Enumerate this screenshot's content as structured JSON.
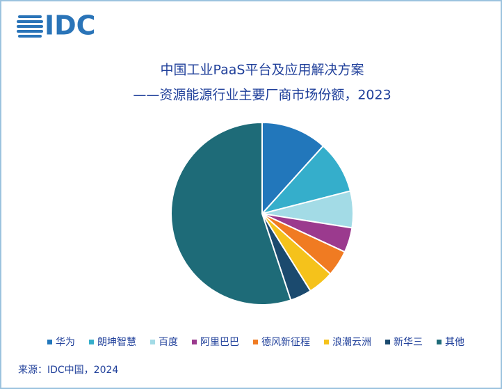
{
  "logo": "IDC",
  "chart_data": {
    "type": "pie",
    "title": "中国工业PaaS平台及应用解决方案",
    "subtitle": "——资源能源行业主要厂商市场份额，2023",
    "source": "来源：IDC中国，2024",
    "categories": [
      "华为",
      "朗坤智慧",
      "百度",
      "阿里巴巴",
      "德风新征程",
      "浪潮云洲",
      "新华三",
      "其他"
    ],
    "values": [
      11.7,
      9.3,
      6.5,
      4.4,
      4.6,
      4.6,
      3.8,
      55.1
    ],
    "colors": [
      "#2277bb",
      "#35aecb",
      "#a3dbe6",
      "#9b3a8e",
      "#f07b22",
      "#f5c21b",
      "#1b4a6e",
      "#1e6b78"
    ],
    "legend": "bottom"
  }
}
